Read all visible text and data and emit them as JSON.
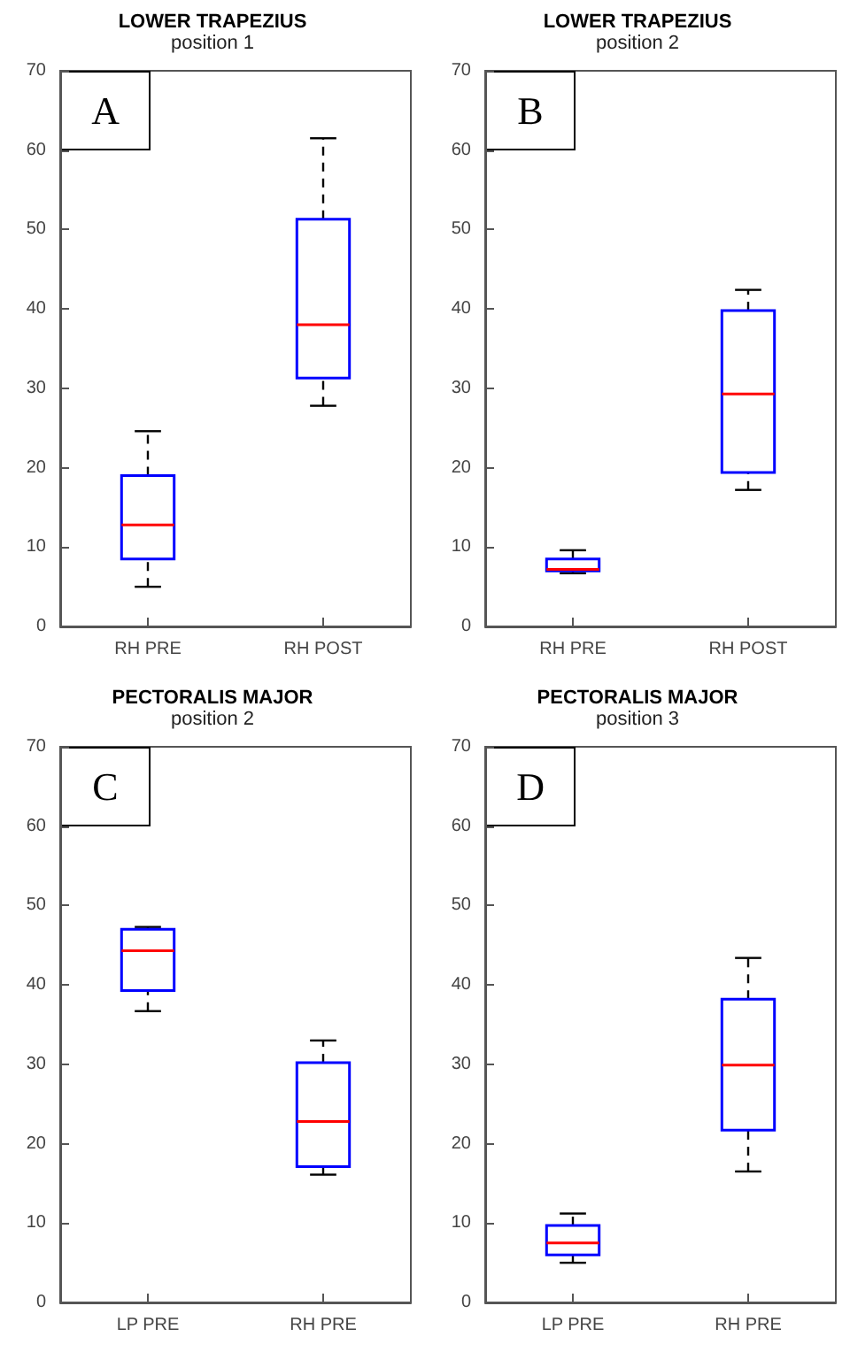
{
  "chart_data": [
    {
      "type": "box",
      "title": "LOWER TRAPEZIUS",
      "subtitle": "position 1",
      "annotations": [
        "A"
      ],
      "categories": [
        "RH PRE",
        "RH POST"
      ],
      "ylim": [
        0,
        70
      ],
      "yticks": [
        0,
        10,
        20,
        30,
        40,
        50,
        60,
        70
      ],
      "grid": false,
      "series": [
        {
          "color": "#0000ff",
          "boxes": [
            {
              "low": 5,
              "q1": 8.5,
              "median": 12.8,
              "q3": 19,
              "high": 24.6
            },
            {
              "low": 27.8,
              "q1": 31.3,
              "median": 38,
              "q3": 51.3,
              "high": 61.5
            }
          ]
        }
      ]
    },
    {
      "type": "box",
      "title": "LOWER TRAPEZIUS",
      "subtitle": "position 2",
      "annotations": [
        "B"
      ],
      "categories": [
        "RH PRE",
        "RH POST"
      ],
      "ylim": [
        0,
        70
      ],
      "yticks": [
        0,
        10,
        20,
        30,
        40,
        50,
        60,
        70
      ],
      "grid": false,
      "series": [
        {
          "color": "#0000ff",
          "boxes": [
            {
              "low": 6.7,
              "q1": 7,
              "median": 7.2,
              "q3": 8.5,
              "high": 9.6
            },
            {
              "low": 17.2,
              "q1": 19.4,
              "median": 29.3,
              "q3": 39.8,
              "high": 42.4
            }
          ]
        }
      ]
    },
    {
      "type": "box",
      "title": "PECTORALIS MAJOR",
      "subtitle": "position 2",
      "annotations": [
        "C"
      ],
      "categories": [
        "LP PRE",
        "RH PRE"
      ],
      "ylim": [
        0,
        70
      ],
      "yticks": [
        0,
        10,
        20,
        30,
        40,
        50,
        60,
        70
      ],
      "grid": false,
      "series": [
        {
          "color": "#0000ff",
          "boxes": [
            {
              "low": 36.7,
              "q1": 39.3,
              "median": 44.3,
              "q3": 47,
              "high": 47.3
            },
            {
              "low": 16.1,
              "q1": 17.1,
              "median": 22.8,
              "q3": 30.2,
              "high": 33
            }
          ]
        }
      ]
    },
    {
      "type": "box",
      "title": "PECTORALIS MAJOR",
      "subtitle": "position 3",
      "annotations": [
        "D"
      ],
      "categories": [
        "LP PRE",
        "RH PRE"
      ],
      "ylim": [
        0,
        70
      ],
      "yticks": [
        0,
        10,
        20,
        30,
        40,
        50,
        60,
        70
      ],
      "grid": false,
      "series": [
        {
          "color": "#0000ff",
          "boxes": [
            {
              "low": 5,
              "q1": 6,
              "median": 7.5,
              "q3": 9.7,
              "high": 11.2
            },
            {
              "low": 16.5,
              "q1": 21.7,
              "median": 29.9,
              "q3": 38.2,
              "high": 43.4
            }
          ]
        }
      ]
    }
  ]
}
